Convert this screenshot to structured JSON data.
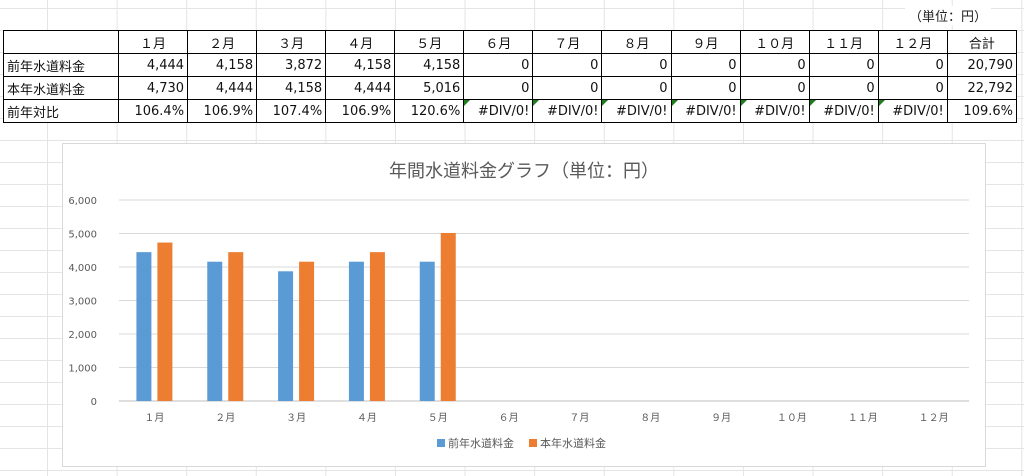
{
  "unit_label": "（単位：円）",
  "table": {
    "columns": [
      "",
      "１月",
      "２月",
      "３月",
      "４月",
      "５月",
      "６月",
      "７月",
      "８月",
      "９月",
      "１０月",
      "１１月",
      "１２月",
      "合計"
    ],
    "rows": [
      {
        "label": "前年水道料金",
        "cells": [
          "4,444",
          "4,158",
          "3,872",
          "4,158",
          "4,158",
          "0",
          "0",
          "0",
          "0",
          "0",
          "0",
          "0",
          "20,790"
        ]
      },
      {
        "label": "本年水道料金",
        "cells": [
          "4,730",
          "4,444",
          "4,158",
          "4,444",
          "5,016",
          "0",
          "0",
          "0",
          "0",
          "0",
          "0",
          "0",
          "22,792"
        ]
      },
      {
        "label": "前年対比",
        "cells": [
          "106.4%",
          "106.9%",
          "107.4%",
          "106.9%",
          "120.6%",
          "#DIV/0!",
          "#DIV/0!",
          "#DIV/0!",
          "#DIV/0!",
          "#DIV/0!",
          "#DIV/0!",
          "#DIV/0!",
          "109.6%"
        ]
      }
    ]
  },
  "chart_data": {
    "type": "bar",
    "title": "年間水道料金グラフ（単位：円）",
    "categories": [
      "１月",
      "２月",
      "３月",
      "４月",
      "５月",
      "６月",
      "７月",
      "８月",
      "９月",
      "１０月",
      "１１月",
      "１２月"
    ],
    "series": [
      {
        "name": "前年水道料金",
        "color": "#5B9BD5",
        "values": [
          4444,
          4158,
          3872,
          4158,
          4158,
          0,
          0,
          0,
          0,
          0,
          0,
          0
        ]
      },
      {
        "name": "本年水道料金",
        "color": "#ED7D31",
        "values": [
          4730,
          4444,
          4158,
          4444,
          5016,
          0,
          0,
          0,
          0,
          0,
          0,
          0
        ]
      }
    ],
    "ylim": [
      0,
      6000
    ],
    "yticks": [
      "0",
      "1,000",
      "2,000",
      "3,000",
      "4,000",
      "5,000",
      "6,000"
    ],
    "ytick_values": [
      0,
      1000,
      2000,
      3000,
      4000,
      5000,
      6000
    ],
    "grid": true,
    "legend_position": "bottom"
  }
}
